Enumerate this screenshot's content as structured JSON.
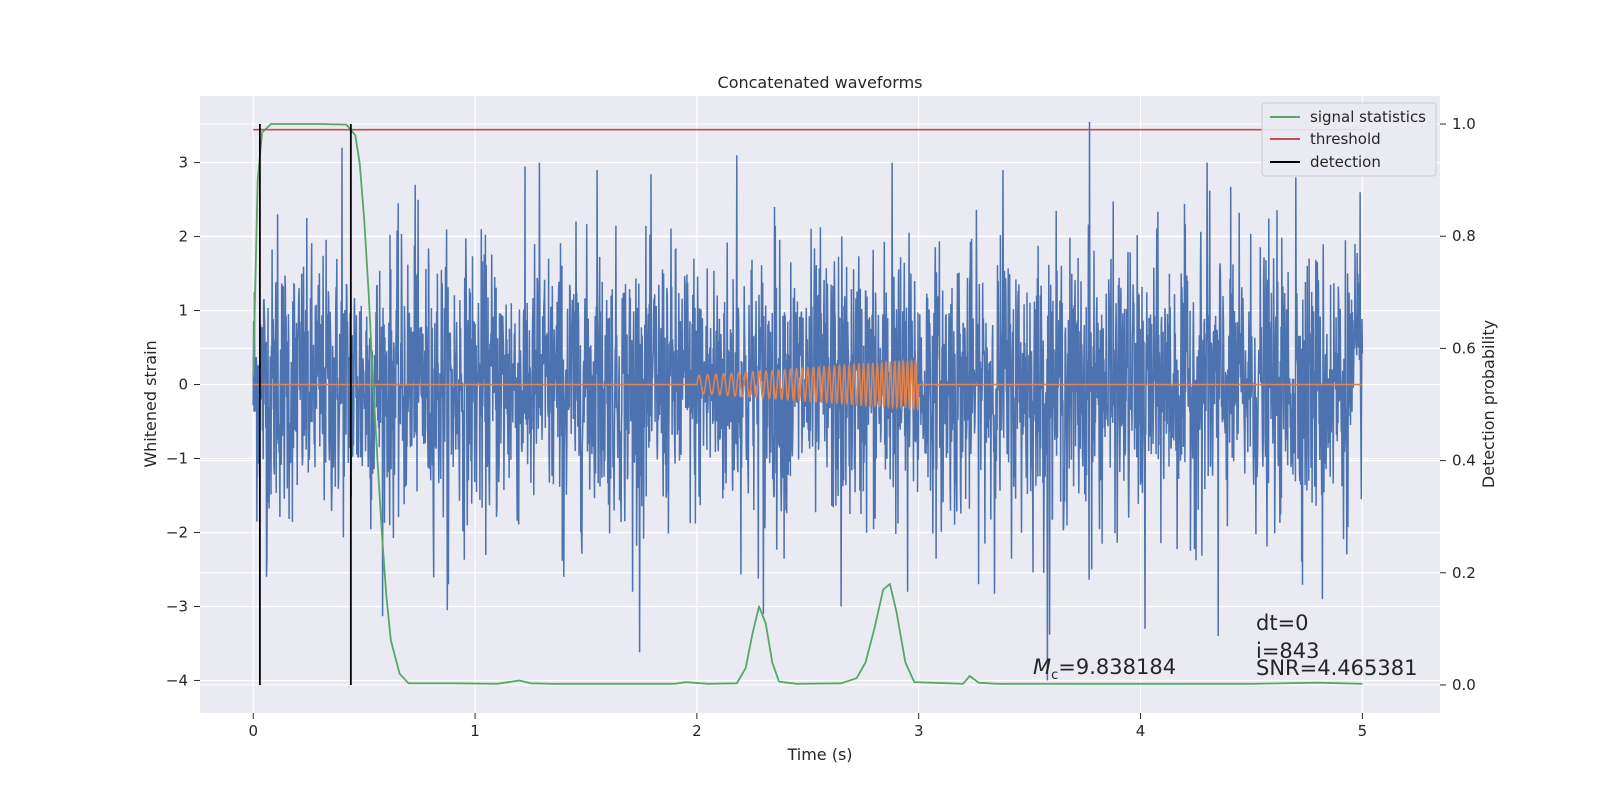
{
  "chart_data": {
    "type": "line",
    "title": "Concatenated waveforms",
    "xlabel": "Time (s)",
    "ylabel": "Whitened strain",
    "y2label": "Detection probability",
    "xlim": [
      -0.24,
      5.35
    ],
    "ylim": [
      -4.44,
      3.9
    ],
    "y2lim": [
      -0.05,
      1.05
    ],
    "x_ticks": [
      0,
      1,
      2,
      3,
      4,
      5
    ],
    "y_ticks": [
      3,
      2,
      1,
      0,
      -1,
      -2,
      -3,
      -4
    ],
    "y2_ticks": [
      1.0,
      0.8,
      0.6,
      0.4,
      0.2,
      0.0
    ],
    "y_tick_labels": [
      "3",
      "2",
      "1",
      "0",
      "−1",
      "−2",
      "−3",
      "−4"
    ],
    "y2_tick_labels": [
      "1.0",
      "0.8",
      "0.6",
      "0.4",
      "0.2",
      "0.0"
    ],
    "x_tick_labels": [
      "0",
      "1",
      "2",
      "3",
      "4",
      "5"
    ],
    "grid": true,
    "legend_position": "top-right",
    "colors": {
      "strain": "#4c72b0",
      "template": "#dd8452",
      "signal_statistics": "#55a868",
      "threshold": "#c44e52",
      "detection": "#000000",
      "background": "#eaeaf2",
      "grid": "#ffffff"
    },
    "series": [
      {
        "name": "signal statistics",
        "axis": "right",
        "x": [
          0,
          0.02,
          0.04,
          0.08,
          0.15,
          0.3,
          0.42,
          0.46,
          0.48,
          0.5,
          0.52,
          0.54,
          0.56,
          0.58,
          0.6,
          0.62,
          0.66,
          0.7,
          0.9,
          1.1,
          1.2,
          1.25,
          1.35,
          1.9,
          1.95,
          2.05,
          2.18,
          2.22,
          2.25,
          2.28,
          2.31,
          2.34,
          2.37,
          2.45,
          2.65,
          2.72,
          2.76,
          2.8,
          2.84,
          2.87,
          2.9,
          2.94,
          2.98,
          3.2,
          3.23,
          3.27,
          3.35,
          4.5,
          4.8,
          5.0
        ],
        "y": [
          0.55,
          0.9,
          0.985,
          1.0,
          1.0,
          1.0,
          0.999,
          0.98,
          0.93,
          0.83,
          0.7,
          0.54,
          0.4,
          0.27,
          0.16,
          0.08,
          0.02,
          0.003,
          0.003,
          0.002,
          0.008,
          0.003,
          0.002,
          0.002,
          0.005,
          0.002,
          0.003,
          0.03,
          0.09,
          0.14,
          0.11,
          0.04,
          0.006,
          0.002,
          0.003,
          0.012,
          0.04,
          0.1,
          0.17,
          0.18,
          0.13,
          0.04,
          0.005,
          0.002,
          0.016,
          0.004,
          0.002,
          0.002,
          0.004,
          0.002
        ]
      },
      {
        "name": "threshold",
        "axis": "right",
        "x": [
          0,
          5
        ],
        "y": [
          0.99,
          0.99
        ]
      },
      {
        "name": "detection",
        "axis": "right",
        "x": [
          0.03,
          0.44
        ],
        "y": [
          1.0,
          1.0
        ]
      }
    ],
    "strain_peaks": {
      "x": [
        0.06,
        0.11,
        0.4,
        0.73,
        0.88,
        1.29,
        1.4,
        1.55,
        1.71,
        2.18,
        2.3,
        2.35,
        2.65,
        2.88,
        2.95,
        3.38,
        3.58,
        3.77,
        3.78,
        4.02,
        4.3,
        4.35,
        4.7,
        4.82,
        4.99
      ],
      "y": [
        -2.6,
        2.3,
        3.2,
        2.7,
        -2.7,
        3.0,
        -2.6,
        2.9,
        -2.8,
        3.1,
        -3.1,
        2.4,
        -3.0,
        3.0,
        -2.8,
        2.9,
        -4.0,
        3.55,
        -2.5,
        -3.3,
        3.0,
        -3.4,
        2.8,
        -2.9,
        2.6
      ]
    },
    "template": {
      "x_start": 2.0,
      "x_end": 3.0,
      "amp_start": 0.12,
      "amp_end": 0.33
    },
    "annotations": {
      "mc_symbol": "M",
      "mc_subscript": "c",
      "mc_value": "=9.838184",
      "dt": "dt=0",
      "i": "i=843",
      "snr": "SNR=4.465381"
    },
    "legend": [
      {
        "label": "signal statistics",
        "key": "signal_statistics"
      },
      {
        "label": "threshold",
        "key": "threshold"
      },
      {
        "label": "detection",
        "key": "detection"
      }
    ]
  }
}
